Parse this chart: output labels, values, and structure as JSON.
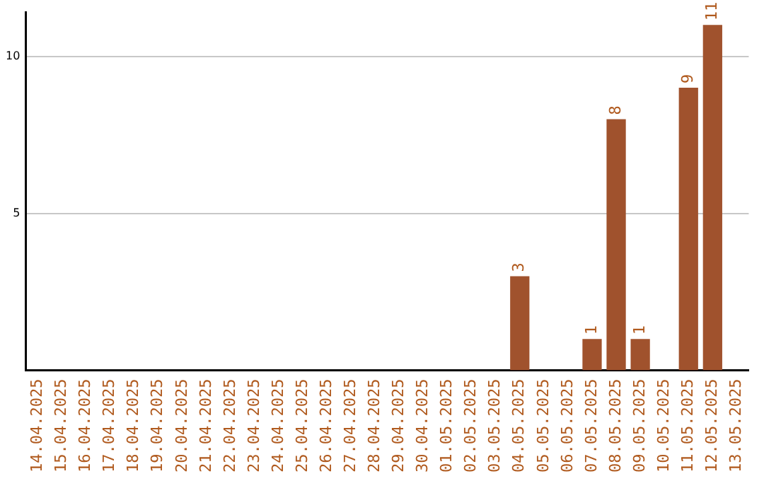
{
  "chart_data": {
    "type": "bar",
    "categories": [
      "14.04.2025",
      "15.04.2025",
      "16.04.2025",
      "17.04.2025",
      "18.04.2025",
      "19.04.2025",
      "20.04.2025",
      "21.04.2025",
      "22.04.2025",
      "23.04.2025",
      "24.04.2025",
      "25.04.2025",
      "26.04.2025",
      "27.04.2025",
      "28.04.2025",
      "29.04.2025",
      "30.04.2025",
      "01.05.2025",
      "02.05.2025",
      "03.05.2025",
      "04.05.2025",
      "05.05.2025",
      "06.05.2025",
      "07.05.2025",
      "08.05.2025",
      "09.05.2025",
      "10.05.2025",
      "11.05.2025",
      "12.05.2025",
      "13.05.2025"
    ],
    "values": [
      0,
      0,
      0,
      0,
      0,
      0,
      0,
      0,
      0,
      0,
      0,
      0,
      0,
      0,
      0,
      0,
      0,
      0,
      0,
      0,
      3,
      0,
      0,
      1,
      8,
      1,
      0,
      9,
      11,
      0
    ],
    "value_labels": [
      null,
      null,
      null,
      null,
      null,
      null,
      null,
      null,
      null,
      null,
      null,
      null,
      null,
      null,
      null,
      null,
      null,
      null,
      null,
      null,
      "3",
      null,
      null,
      "1",
      "8",
      "1",
      null,
      "9",
      "11",
      null
    ],
    "color": "#a0522d",
    "ylim": [
      0,
      11.4
    ],
    "yticks": [
      5,
      10
    ],
    "grid": "y",
    "legend": false
  }
}
